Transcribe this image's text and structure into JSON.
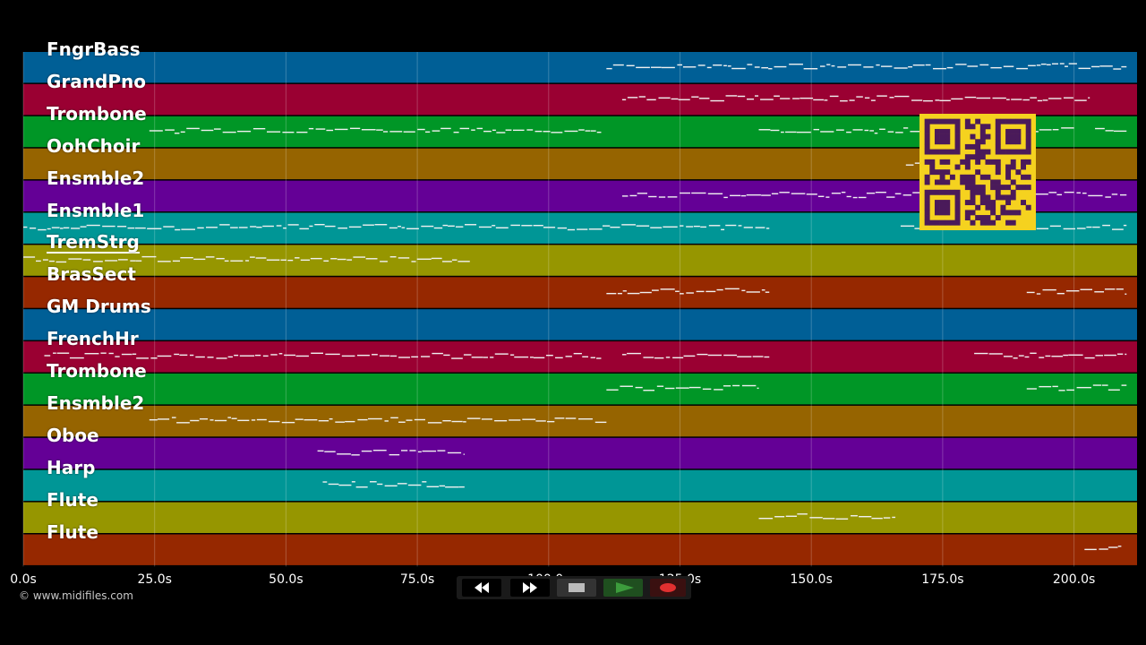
{
  "tracks": [
    {
      "name": "FngrBass",
      "color": "#005f96"
    },
    {
      "name": "GrandPno",
      "color": "#9a0032"
    },
    {
      "name": "Trombone",
      "color": "#009626"
    },
    {
      "name": "OohChoir",
      "color": "#966400"
    },
    {
      "name": "Ensmble2",
      "color": "#640096"
    },
    {
      "name": "Ensmble1",
      "color": "#009696"
    },
    {
      "name": "TremStrg",
      "color": "#969600",
      "selected": true
    },
    {
      "name": "BrasSect",
      "color": "#962800"
    },
    {
      "name": "GM Drums",
      "color": "#005f96"
    },
    {
      "name": "FrenchHr",
      "color": "#9a0032"
    },
    {
      "name": "Trombone",
      "color": "#009626"
    },
    {
      "name": "Ensmble2",
      "color": "#966400"
    },
    {
      "name": "Oboe",
      "color": "#640096"
    },
    {
      "name": "Harp",
      "color": "#009696"
    },
    {
      "name": "Flute",
      "color": "#969600"
    },
    {
      "name": "Flute",
      "color": "#962800"
    }
  ],
  "timeline": {
    "ticks": [
      "0.0s",
      "25.0s",
      "50.0s",
      "75.0s",
      "100.0s",
      "125.0s",
      "150.0s",
      "175.0s",
      "200.0s"
    ],
    "tick_values": [
      0,
      25,
      50,
      75,
      100,
      125,
      150,
      175,
      200
    ],
    "max_seconds": 212
  },
  "note_segments": [
    {
      "track": 0,
      "start": 111,
      "end": 210
    },
    {
      "track": 1,
      "start": 114,
      "end": 203
    },
    {
      "track": 2,
      "start": 24,
      "end": 110
    },
    {
      "track": 2,
      "start": 140,
      "end": 200
    },
    {
      "track": 2,
      "start": 204,
      "end": 210
    },
    {
      "track": 3,
      "start": 168,
      "end": 171
    },
    {
      "track": 4,
      "start": 114,
      "end": 210
    },
    {
      "track": 5,
      "start": 0,
      "end": 142
    },
    {
      "track": 5,
      "start": 167,
      "end": 210
    },
    {
      "track": 6,
      "start": 0,
      "end": 85
    },
    {
      "track": 7,
      "start": 111,
      "end": 142
    },
    {
      "track": 7,
      "start": 191,
      "end": 210
    },
    {
      "track": 9,
      "start": 4,
      "end": 110
    },
    {
      "track": 9,
      "start": 114,
      "end": 142
    },
    {
      "track": 9,
      "start": 181,
      "end": 210
    },
    {
      "track": 10,
      "start": 111,
      "end": 140
    },
    {
      "track": 10,
      "start": 191,
      "end": 210
    },
    {
      "track": 11,
      "start": 24,
      "end": 111
    },
    {
      "track": 12,
      "start": 56,
      "end": 84
    },
    {
      "track": 13,
      "start": 57,
      "end": 84
    },
    {
      "track": 14,
      "start": 140,
      "end": 166
    },
    {
      "track": 15,
      "start": 202,
      "end": 209
    }
  ],
  "copyright": "© www.midifiles.com",
  "transport": {
    "rewind_icon": "rewind-icon",
    "fast_forward_icon": "fast-forward-icon",
    "stop_icon": "stop-icon",
    "play_icon": "play-icon",
    "record_icon": "record-icon",
    "play_color": "#3c9c3c",
    "record_color": "#e03030"
  }
}
